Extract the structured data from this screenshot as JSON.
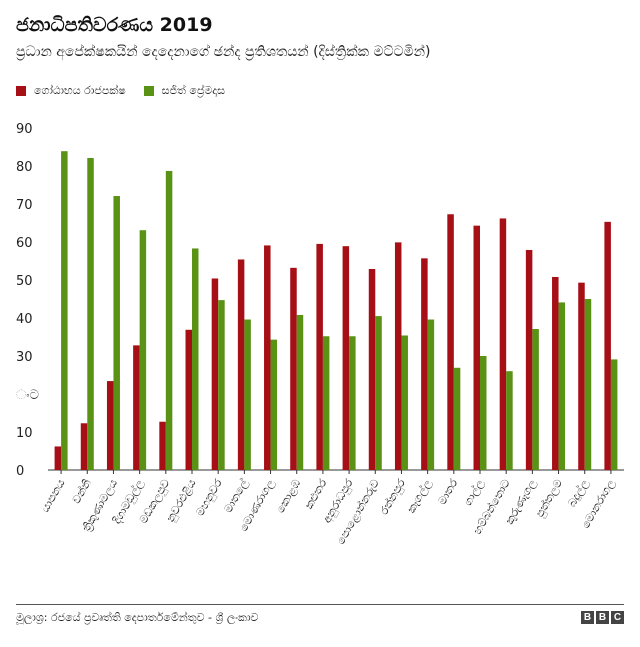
{
  "title": "ජනාධිපතිවරණය 2019",
  "subtitle": "ප්‍රධාන අපේක්ෂකයින් දෙදෙනාගේ ඡන්ද ප්‍රතිශතයන් (දිස්ත්‍රික්ක මට්ටමින්)",
  "source": "මූලාශ්‍ර: රජයේ ප්‍රවෘත්ති දෙපාර්තමේන්තුව - ශ්‍රී ලංකාව",
  "logo": [
    "B",
    "B",
    "C"
  ],
  "colors": {
    "series1": "#a50f15",
    "series2": "#5a9216"
  },
  "chart_data": {
    "type": "bar",
    "title": "ජනාධිපතිවරණය 2019",
    "ylim": [
      0,
      90
    ],
    "yticks": [
      0,
      10,
      20,
      30,
      40,
      50,
      60,
      70,
      80,
      90
    ],
    "ytick_labels": [
      "0",
      "10",
      "ංට",
      "30",
      "40",
      "50",
      "60",
      "70",
      "80",
      "90"
    ],
    "grid": false,
    "legend": "top-left",
    "categories": [
      "යාපනය",
      "වන්නි",
      "ත්‍රිකුණාමලය",
      "දිගාමඩුල්ල",
      "මඩකලපුව",
      "නුවරඑළිය",
      "මහනුවර",
      "මාතලේ",
      "මොණරාගල",
      "කොළඹ",
      "කළුතර",
      "අනුරාධපුර",
      "පොළොන්නරුව",
      "රත්නපුර",
      "කෑගල්ල",
      "මාතර",
      "ගාල්ල",
      "හම්බන්තොට",
      "කුරුණෑගල",
      "පුත්තලම",
      "බදුල්ල",
      "මොනරාගල"
    ],
    "series": [
      {
        "name": "ගෝඨාභය රාජපක්ෂ",
        "values": [
          6.2,
          12.3,
          23.4,
          32.8,
          12.7,
          36.9,
          50.4,
          55.4,
          59.1,
          53.2,
          59.5,
          58.9,
          52.9,
          59.9,
          55.7,
          67.3,
          64.3,
          66.2,
          57.9,
          50.8,
          49.3,
          65.3
        ]
      },
      {
        "name": "සජිත් ප්‍රේමදාස",
        "values": [
          83.9,
          82.1,
          72.1,
          63.1,
          78.7,
          58.3,
          44.7,
          39.6,
          34.3,
          40.8,
          35.2,
          35.2,
          40.5,
          35.4,
          39.6,
          26.9,
          30.0,
          26.0,
          37.1,
          44.1,
          45.0,
          29.1
        ]
      }
    ]
  }
}
